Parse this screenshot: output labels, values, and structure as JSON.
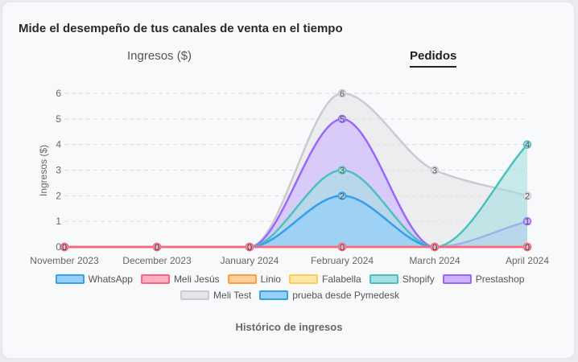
{
  "header": {
    "title": "Mide el desempeño de tus canales de venta en el tiempo",
    "tabs": [
      {
        "label": "Ingresos ($)",
        "active": false
      },
      {
        "label": "Pedidos",
        "active": true
      }
    ]
  },
  "footer_label": "Histórico de ingresos",
  "chart_data": {
    "type": "area",
    "ylabel": "Ingresos ($)",
    "xlabel": "",
    "ylim": [
      0,
      6
    ],
    "yticks": [
      "0",
      "1",
      "2",
      "3",
      "4",
      "5",
      "6"
    ],
    "grid": true,
    "legend_position": "bottom",
    "categories": [
      "November 2023",
      "December 2023",
      "January 2024",
      "February 2024",
      "March 2024",
      "April 2024"
    ],
    "series": [
      {
        "name": "WhatsApp",
        "values": [
          0,
          0,
          0,
          2,
          0,
          0
        ],
        "stroke": "#36a2eb",
        "fill": "#9ad0f5"
      },
      {
        "name": "Meli Jesús",
        "values": [
          0,
          0,
          0,
          0,
          0,
          0
        ],
        "stroke": "#ff6384",
        "fill": "#ffb1c1"
      },
      {
        "name": "Linio",
        "values": [
          0,
          0,
          0,
          0,
          0,
          0
        ],
        "stroke": "#ff9f40",
        "fill": "#ffcf9f"
      },
      {
        "name": "Falabella",
        "values": [
          0,
          0,
          0,
          0,
          0,
          0
        ],
        "stroke": "#ffcd56",
        "fill": "#ffe6aa"
      },
      {
        "name": "Shopify",
        "values": [
          0,
          0,
          0,
          3,
          0,
          4
        ],
        "stroke": "#4bc0c0",
        "fill": "#a5dfdf"
      },
      {
        "name": "Prestashop",
        "values": [
          0,
          0,
          0,
          5,
          0,
          1
        ],
        "stroke": "#9966ff",
        "fill": "#ccb2ff"
      },
      {
        "name": "Meli Test",
        "values": [
          0,
          0,
          0,
          6,
          3,
          2
        ],
        "stroke": "#c9cbcf",
        "fill": "#e4e5e7"
      },
      {
        "name": "prueba desde Pymedesk",
        "values": [
          0,
          0,
          0,
          2,
          0,
          0
        ],
        "stroke": "#36a2eb",
        "fill": "#9ad0f5"
      }
    ]
  }
}
